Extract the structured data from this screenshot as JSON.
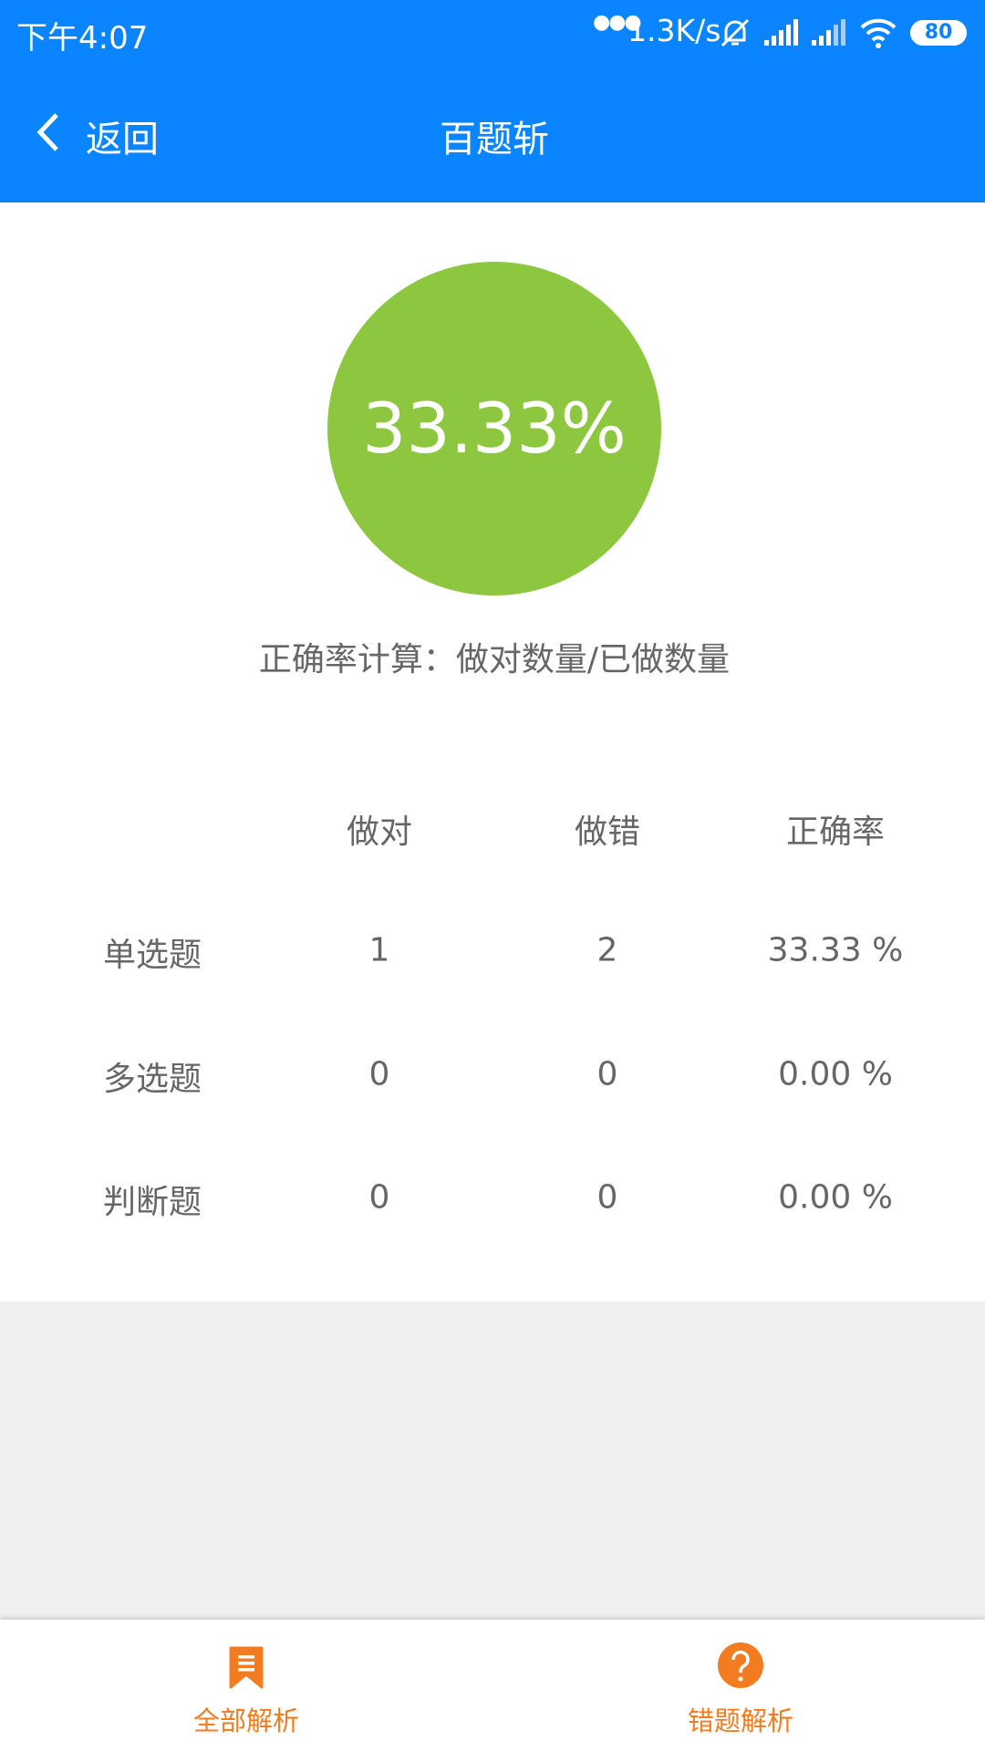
{
  "status_bar": {
    "time": "下午4:07",
    "network_speed": "1.3K/s",
    "battery": "80",
    "icons": [
      "dots-icon",
      "mute-bell-icon",
      "signal-icon",
      "signal-icon",
      "wifi-icon",
      "battery-icon"
    ]
  },
  "header": {
    "back_label": "返回",
    "title": "百题斩"
  },
  "summary": {
    "accuracy": "33.33%",
    "accuracy_value": 33.33,
    "circle_color": "#8dc63f",
    "formula": "正确率计算：做对数量/已做数量"
  },
  "table": {
    "headers": [
      "",
      "做对",
      "做错",
      "正确率"
    ],
    "rows": [
      {
        "type": "单选题",
        "correct": "1",
        "wrong": "2",
        "rate": "33.33 %"
      },
      {
        "type": "多选题",
        "correct": "0",
        "wrong": "0",
        "rate": "0.00 %"
      },
      {
        "type": "判断题",
        "correct": "0",
        "wrong": "0",
        "rate": "0.00 %"
      }
    ]
  },
  "bottom_tabs": [
    {
      "label": "全部解析",
      "icon": "bookmark-list-icon"
    },
    {
      "label": "错题解析",
      "icon": "question-circle-icon"
    }
  ],
  "colors": {
    "primary": "#0a84ff",
    "accent": "#f47c20",
    "success": "#8dc63f"
  }
}
